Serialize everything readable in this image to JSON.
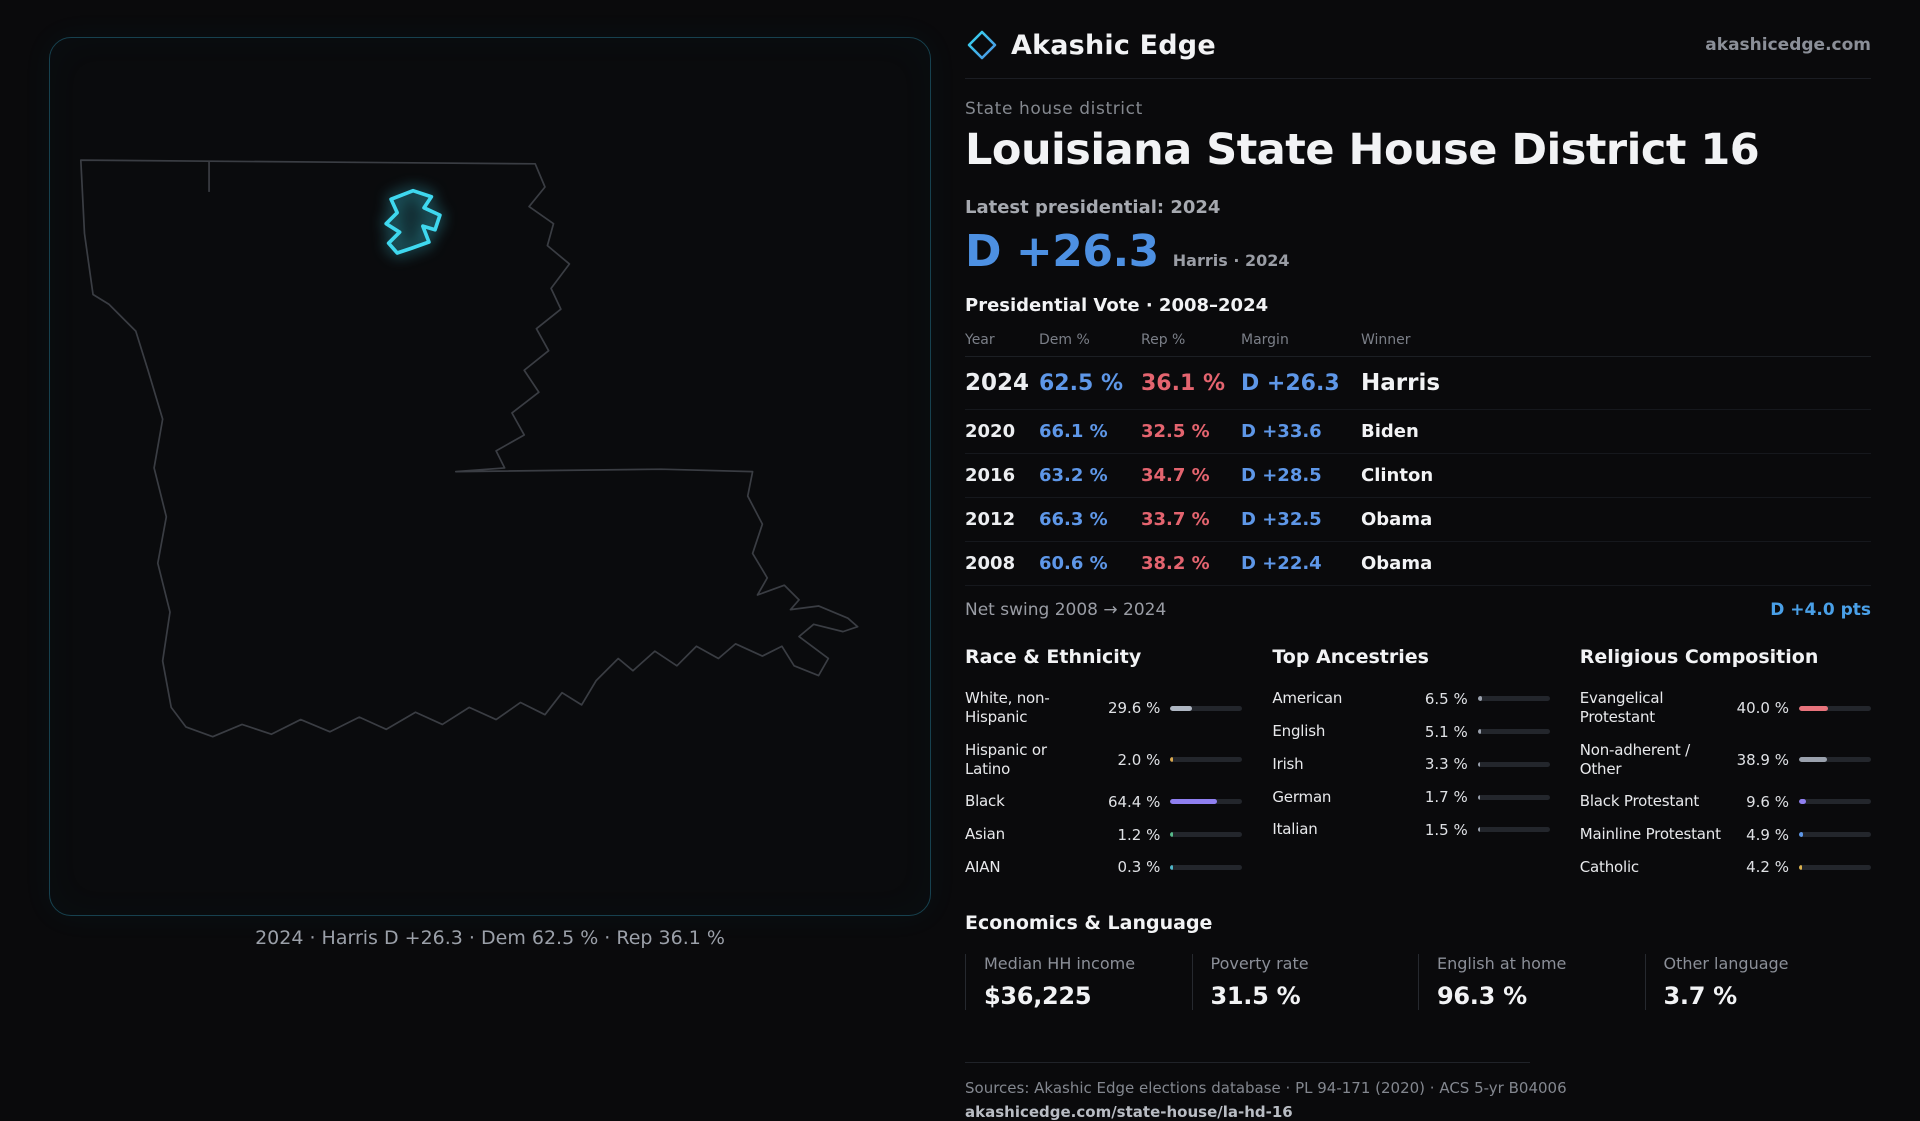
{
  "brand": {
    "name": "Akashic Edge",
    "site": "akashicedge.com"
  },
  "header": {
    "kicker": "State house district",
    "title": "Louisiana State House District 16",
    "latest_label": "Latest presidential: 2024",
    "headline_margin": "D +26.3",
    "headline_note": "Harris · 2024"
  },
  "map": {
    "caption": "2024 · Harris D +26.3 · Dem 62.5 % · Rep 36.1 %",
    "district_color": "#3fd8ef"
  },
  "vote_table": {
    "title": "Presidential Vote · 2008–2024",
    "columns": [
      "Year",
      "Dem %",
      "Rep %",
      "Margin",
      "Winner"
    ],
    "rows": [
      {
        "year": "2024",
        "dem": "62.5 %",
        "rep": "36.1 %",
        "margin": "D +26.3",
        "winner": "Harris"
      },
      {
        "year": "2020",
        "dem": "66.1 %",
        "rep": "32.5 %",
        "margin": "D +33.6",
        "winner": "Biden"
      },
      {
        "year": "2016",
        "dem": "63.2 %",
        "rep": "34.7 %",
        "margin": "D +28.5",
        "winner": "Clinton"
      },
      {
        "year": "2012",
        "dem": "66.3 %",
        "rep": "33.7 %",
        "margin": "D +32.5",
        "winner": "Obama"
      },
      {
        "year": "2008",
        "dem": "60.6 %",
        "rep": "38.2 %",
        "margin": "D +22.4",
        "winner": "Obama"
      }
    ]
  },
  "net_swing": {
    "label": "Net swing 2008 → 2024",
    "value": "D +4.0 pts"
  },
  "demographics": {
    "sections": [
      {
        "title": "Race & Ethnicity",
        "rows": [
          {
            "label": "White, non-Hispanic",
            "value": "29.6 %",
            "pct": 29.6,
            "color": "#aeb6c2"
          },
          {
            "label": "Hispanic or Latino",
            "value": "2.0 %",
            "pct": 2.0,
            "color": "#d9a84e"
          },
          {
            "label": "Black",
            "value": "64.4 %",
            "pct": 64.4,
            "color": "#8f7ff0"
          },
          {
            "label": "Asian",
            "value": "1.2 %",
            "pct": 1.2,
            "color": "#57b98a"
          },
          {
            "label": "AIAN",
            "value": "0.3 %",
            "pct": 0.3,
            "color": "#4fb6c9"
          }
        ]
      },
      {
        "title": "Top Ancestries",
        "rows": [
          {
            "label": "American",
            "value": "6.5 %",
            "pct": 6.5,
            "color": "#9aa1ad"
          },
          {
            "label": "English",
            "value": "5.1 %",
            "pct": 5.1,
            "color": "#9aa1ad"
          },
          {
            "label": "Irish",
            "value": "3.3 %",
            "pct": 3.3,
            "color": "#9aa1ad"
          },
          {
            "label": "German",
            "value": "1.7 %",
            "pct": 1.7,
            "color": "#9aa1ad"
          },
          {
            "label": "Italian",
            "value": "1.5 %",
            "pct": 1.5,
            "color": "#9aa1ad"
          }
        ]
      },
      {
        "title": "Religious Composition",
        "rows": [
          {
            "label": "Evangelical Protestant",
            "value": "40.0 %",
            "pct": 40.0,
            "color": "#e8737c"
          },
          {
            "label": "Non-adherent / Other",
            "value": "38.9 %",
            "pct": 38.9,
            "color": "#9aa1ad"
          },
          {
            "label": "Black Protestant",
            "value": "9.6 %",
            "pct": 9.6,
            "color": "#8f7ff0"
          },
          {
            "label": "Mainline Protestant",
            "value": "4.9 %",
            "pct": 4.9,
            "color": "#5e97e8"
          },
          {
            "label": "Catholic",
            "value": "4.2 %",
            "pct": 4.2,
            "color": "#dcb24e"
          }
        ]
      }
    ]
  },
  "economics": {
    "title": "Economics & Language",
    "stats": [
      {
        "label": "Median HH income",
        "value": "$36,225"
      },
      {
        "label": "Poverty rate",
        "value": "31.5 %"
      },
      {
        "label": "English at home",
        "value": "96.3 %"
      },
      {
        "label": "Other language",
        "value": "3.7 %"
      }
    ]
  },
  "footer": {
    "sources": "Sources: Akashic Edge elections database · PL 94-171 (2020) · ACS 5-yr B04006",
    "url": "akashicedge.com/state-house/la-hd-16"
  },
  "colors": {
    "dem_blue": "#5e97e8",
    "rep_red": "#e4646f",
    "accent_cyan": "#3fd8ef"
  },
  "chart_data": [
    {
      "type": "table",
      "title": "Presidential Vote · 2008–2024",
      "columns": [
        "Year",
        "Dem %",
        "Rep %",
        "Margin",
        "Winner"
      ],
      "rows": [
        [
          "2024",
          62.5,
          36.1,
          "D +26.3",
          "Harris"
        ],
        [
          "2020",
          66.1,
          32.5,
          "D +33.6",
          "Biden"
        ],
        [
          "2016",
          63.2,
          34.7,
          "D +28.5",
          "Clinton"
        ],
        [
          "2012",
          66.3,
          33.7,
          "D +32.5",
          "Obama"
        ],
        [
          "2008",
          60.6,
          38.2,
          "D +22.4",
          "Obama"
        ]
      ],
      "footnote": "Net swing 2008 → 2024: D +4.0 pts"
    },
    {
      "type": "bar",
      "title": "Race & Ethnicity",
      "categories": [
        "White, non-Hispanic",
        "Hispanic or Latino",
        "Black",
        "Asian",
        "AIAN"
      ],
      "values": [
        29.6,
        2.0,
        64.4,
        1.2,
        0.3
      ],
      "unit": "%",
      "xlim": [
        0,
        100
      ]
    },
    {
      "type": "bar",
      "title": "Top Ancestries",
      "categories": [
        "American",
        "English",
        "Irish",
        "German",
        "Italian"
      ],
      "values": [
        6.5,
        5.1,
        3.3,
        1.7,
        1.5
      ],
      "unit": "%",
      "xlim": [
        0,
        100
      ]
    },
    {
      "type": "bar",
      "title": "Religious Composition",
      "categories": [
        "Evangelical Protestant",
        "Non-adherent / Other",
        "Black Protestant",
        "Mainline Protestant",
        "Catholic"
      ],
      "values": [
        40.0,
        38.9,
        9.6,
        4.9,
        4.2
      ],
      "unit": "%",
      "xlim": [
        0,
        100
      ]
    },
    {
      "type": "table",
      "title": "Economics & Language",
      "columns": [
        "Median HH income",
        "Poverty rate",
        "English at home",
        "Other language"
      ],
      "rows": [
        [
          "$36,225",
          "31.5 %",
          "96.3 %",
          "3.7 %"
        ]
      ]
    }
  ]
}
